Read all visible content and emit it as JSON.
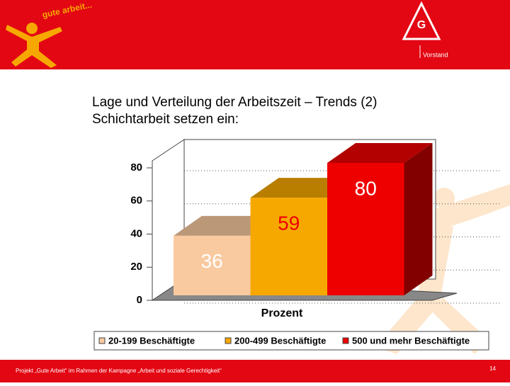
{
  "header": {
    "logo": "gute arbeit...",
    "unit": "Vorstand"
  },
  "title": [
    "Lage und Verteilung der Arbeitszeit – Trends (2)",
    "Schichtarbeit setzen ein:"
  ],
  "chart_data": {
    "type": "bar3d",
    "categories": [
      "Prozent"
    ],
    "series": [
      {
        "name": "20-199 Beschäftigte",
        "color": "#f9caa0",
        "values": [
          36
        ]
      },
      {
        "name": "200-499 Beschäftigte",
        "color": "#f7a800",
        "values": [
          59
        ]
      },
      {
        "name": "500 und mehr Beschäftigte",
        "color": "#ee0000",
        "values": [
          80
        ]
      }
    ],
    "ylim": [
      0,
      80
    ],
    "yticks": [
      0,
      20,
      40,
      60,
      80
    ],
    "grid": true,
    "legend": "bottom"
  },
  "footer": {
    "text": "Projekt „Gute Arbeit“ im Rahmen der Kampagne „Arbeit und soziale Gerechtigkeit“",
    "page": "14"
  }
}
